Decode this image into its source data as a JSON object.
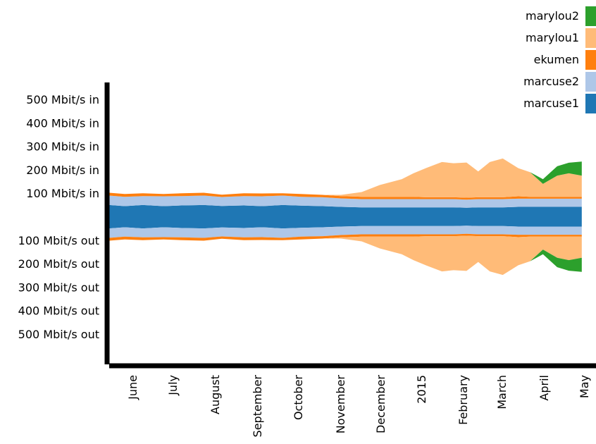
{
  "chart_data": {
    "type": "area",
    "layout": "mirrored-stacked (in above center, out below center)",
    "title": "",
    "xlabel": "",
    "ylabel": "",
    "y_unit": "Mbit/s",
    "y_ticks": [
      {
        "value": 500,
        "label": "500 Mbit/s in"
      },
      {
        "value": 400,
        "label": "400 Mbit/s in"
      },
      {
        "value": 300,
        "label": "300 Mbit/s in"
      },
      {
        "value": 200,
        "label": "200 Mbit/s in"
      },
      {
        "value": 100,
        "label": "100 Mbit/s in"
      },
      {
        "value": -100,
        "label": "100 Mbit/s out"
      },
      {
        "value": -200,
        "label": "200 Mbit/s out"
      },
      {
        "value": -300,
        "label": "300 Mbit/s out"
      },
      {
        "value": -400,
        "label": "400 Mbit/s out"
      },
      {
        "value": -500,
        "label": "500 Mbit/s out"
      }
    ],
    "x_ticks": [
      "June",
      "July",
      "August",
      "September",
      "October",
      "November",
      "December",
      "2015",
      "February",
      "March",
      "April",
      "May"
    ],
    "x": [
      "2014-05-20",
      "2014-06-01",
      "2014-06-15",
      "2014-07-01",
      "2014-07-15",
      "2014-08-01",
      "2014-08-15",
      "2014-09-01",
      "2014-09-15",
      "2014-10-01",
      "2014-10-15",
      "2014-11-01",
      "2014-11-15",
      "2014-12-01",
      "2014-12-15",
      "2015-01-01",
      "2015-01-10",
      "2015-01-20",
      "2015-02-01",
      "2015-02-10",
      "2015-02-20",
      "2015-03-01",
      "2015-03-10",
      "2015-03-20",
      "2015-04-01",
      "2015-04-10",
      "2015-04-20",
      "2015-05-01",
      "2015-05-10",
      "2015-05-20"
    ],
    "series": [
      {
        "name": "marcuse1",
        "color": "#1f77b4",
        "values": [
          50,
          45,
          50,
          45,
          48,
          50,
          46,
          48,
          45,
          50,
          47,
          45,
          42,
          40,
          40,
          40,
          40,
          40,
          40,
          40,
          38,
          40,
          40,
          40,
          42,
          42,
          42,
          42,
          42,
          42
        ]
      },
      {
        "name": "marcuse2",
        "color": "#aec7e8",
        "values": [
          40,
          40,
          38,
          42,
          40,
          40,
          38,
          40,
          42,
          40,
          38,
          38,
          36,
          35,
          35,
          35,
          35,
          35,
          35,
          35,
          35,
          35,
          35,
          35,
          35,
          35,
          35,
          35,
          35,
          35
        ]
      },
      {
        "name": "ekumen",
        "color": "#ff7f0e",
        "values": [
          12,
          12,
          12,
          10,
          12,
          12,
          10,
          12,
          12,
          10,
          12,
          10,
          10,
          10,
          10,
          10,
          10,
          8,
          8,
          8,
          8,
          8,
          8,
          8,
          10,
          8,
          8,
          8,
          8,
          8
        ]
      },
      {
        "name": "marylou1",
        "color": "#ffbb78",
        "values": [
          0,
          0,
          0,
          0,
          0,
          0,
          0,
          0,
          0,
          0,
          0,
          0,
          5,
          20,
          50,
          75,
          100,
          125,
          150,
          145,
          150,
          110,
          150,
          165,
          120,
          105,
          55,
          90,
          100,
          90
        ]
      },
      {
        "name": "marylou2",
        "color": "#2ca02c",
        "values": [
          0,
          0,
          0,
          0,
          0,
          0,
          0,
          0,
          0,
          0,
          0,
          0,
          0,
          0,
          0,
          0,
          0,
          0,
          0,
          0,
          0,
          0,
          0,
          0,
          0,
          0,
          20,
          40,
          45,
          60
        ]
      }
    ],
    "legend_order": [
      "marylou2",
      "marylou1",
      "ekumen",
      "marcuse2",
      "marcuse1"
    ],
    "legend_position": "top-right"
  }
}
